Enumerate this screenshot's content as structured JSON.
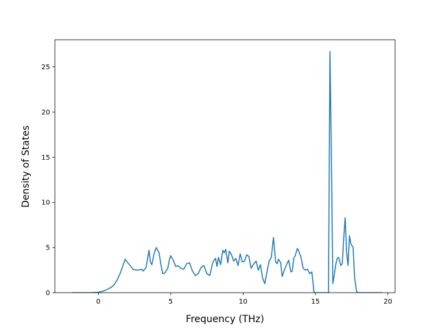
{
  "chart_data": {
    "type": "line",
    "title": "",
    "xlabel": "Frequency (THz)",
    "ylabel": "Density of States",
    "xlim": [
      -3.0,
      20.5
    ],
    "ylim": [
      0,
      28
    ],
    "xticks": [
      0,
      5,
      10,
      15,
      20
    ],
    "yticks": [
      0,
      5,
      10,
      15,
      20,
      25
    ],
    "grid": false,
    "series": [
      {
        "color": "#1f77b4",
        "x": [
          -1.8,
          -0.5,
          0.0,
          0.3,
          0.6,
          0.9,
          1.1,
          1.3,
          1.5,
          1.7,
          1.85,
          2.0,
          2.2,
          2.4,
          2.6,
          2.8,
          3.0,
          3.1,
          3.3,
          3.5,
          3.6,
          3.7,
          3.85,
          4.0,
          4.2,
          4.3,
          4.45,
          4.6,
          4.8,
          4.9,
          5.0,
          5.1,
          5.2,
          5.35,
          5.5,
          5.7,
          5.9,
          6.1,
          6.3,
          6.5,
          6.7,
          6.9,
          7.1,
          7.3,
          7.5,
          7.7,
          7.9,
          8.0,
          8.1,
          8.2,
          8.3,
          8.45,
          8.6,
          8.7,
          8.8,
          8.95,
          9.05,
          9.2,
          9.35,
          9.5,
          9.65,
          9.8,
          9.95,
          10.1,
          10.25,
          10.4,
          10.55,
          10.7,
          10.9,
          11.05,
          11.2,
          11.35,
          11.5,
          11.65,
          11.8,
          11.95,
          12.1,
          12.25,
          12.35,
          12.45,
          12.6,
          12.7,
          12.85,
          13.0,
          13.15,
          13.3,
          13.4,
          13.5,
          13.6,
          13.75,
          13.85,
          14.0,
          14.15,
          14.3,
          14.45,
          14.6,
          14.75,
          14.9,
          15.0,
          15.8,
          15.9,
          16.0,
          16.1,
          16.2,
          16.3,
          16.4,
          16.5,
          16.6,
          16.75,
          16.85,
          16.95,
          17.05,
          17.15,
          17.25,
          17.35,
          17.45,
          17.6,
          17.7,
          17.8,
          17.85,
          18.0,
          19.6
        ],
        "y": [
          0,
          0,
          0.05,
          0.15,
          0.35,
          0.6,
          0.9,
          1.4,
          2.1,
          3.0,
          3.7,
          3.4,
          3.0,
          2.6,
          2.5,
          2.5,
          2.6,
          2.4,
          2.8,
          4.7,
          3.4,
          3.1,
          4.3,
          5.0,
          4.4,
          3.3,
          2.1,
          2.2,
          2.7,
          3.6,
          4.1,
          3.8,
          3.5,
          2.9,
          3.0,
          2.7,
          2.6,
          3.2,
          3.3,
          2.4,
          1.9,
          2.1,
          2.8,
          3.0,
          2.1,
          1.9,
          3.3,
          3.6,
          3.8,
          2.9,
          3.9,
          3.1,
          4.7,
          4.4,
          4.8,
          3.3,
          4.6,
          4.2,
          3.5,
          3.8,
          3.0,
          4.3,
          3.4,
          3.5,
          4.2,
          4.0,
          2.7,
          3.1,
          3.5,
          2.5,
          3.1,
          1.6,
          1.0,
          2.3,
          3.5,
          3.9,
          6.1,
          3.4,
          3.2,
          3.7,
          3.3,
          1.8,
          2.5,
          3.1,
          3.6,
          2.3,
          2.4,
          3.8,
          4.1,
          4.9,
          4.6,
          3.9,
          2.7,
          2.5,
          2.6,
          2.1,
          2.3,
          0,
          0,
          0,
          0,
          26.7,
          15.0,
          1.0,
          2.0,
          3.1,
          3.8,
          3.9,
          3.0,
          3.2,
          6.0,
          8.3,
          4.5,
          3.0,
          6.3,
          5.4,
          5.0,
          1.7,
          0.6,
          0.05,
          0,
          0
        ]
      }
    ]
  }
}
